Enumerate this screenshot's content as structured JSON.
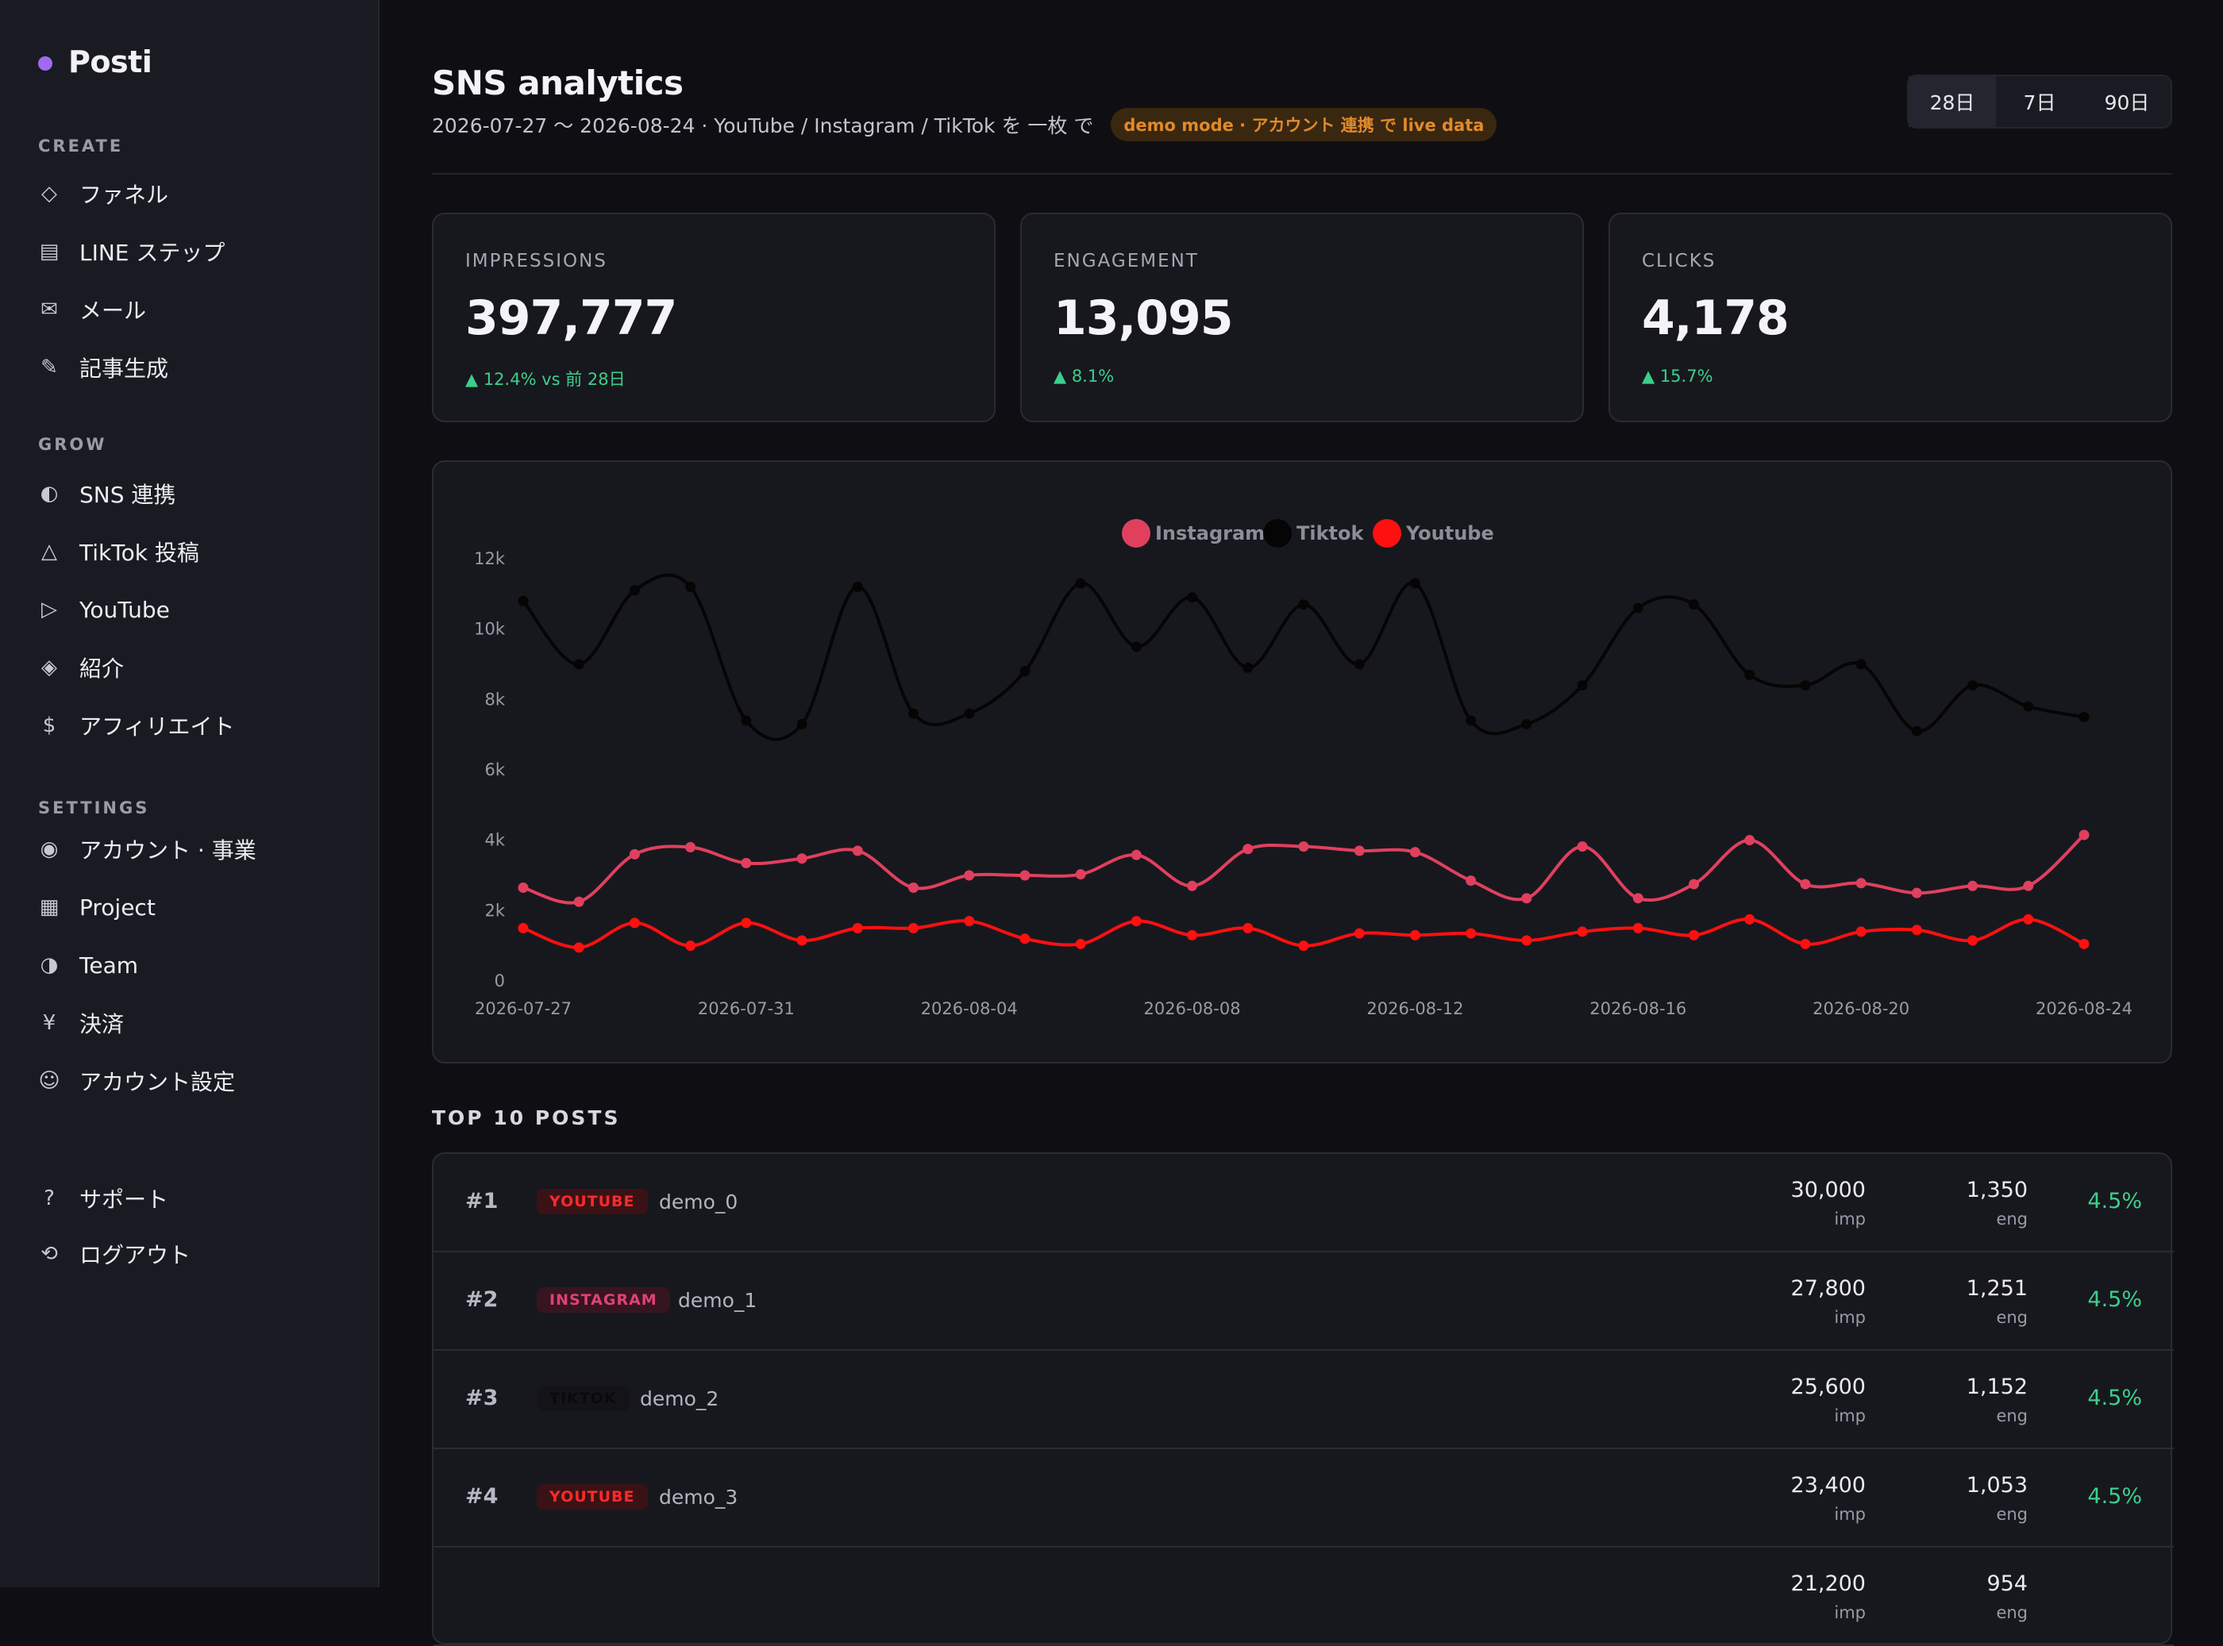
{
  "sidebar": {
    "brand": "Posti",
    "sections": [
      {
        "title": "CREATE",
        "items": [
          {
            "icon": "◇",
            "icon_name": "diamond-icon",
            "label": "ファネル"
          },
          {
            "icon": "▤",
            "icon_name": "list-icon",
            "label": "LINE ステップ"
          },
          {
            "icon": "✉",
            "icon_name": "mail-icon",
            "label": "メール"
          },
          {
            "icon": "✎",
            "icon_name": "pencil-icon",
            "label": "記事生成"
          }
        ]
      },
      {
        "title": "GROW",
        "items": [
          {
            "icon": "◐",
            "icon_name": "half-circle-icon",
            "label": "SNS 連携"
          },
          {
            "icon": "△",
            "icon_name": "triangle-icon",
            "label": "TikTok 投稿"
          },
          {
            "icon": "▷",
            "icon_name": "play-icon",
            "label": "YouTube"
          },
          {
            "icon": "◈",
            "icon_name": "diamond-dot-icon",
            "label": "紹介"
          },
          {
            "icon": "$",
            "icon_name": "dollar-icon",
            "label": "アフィリエイト"
          }
        ]
      },
      {
        "title": "SETTINGS",
        "items": [
          {
            "icon": "◉",
            "icon_name": "target-icon",
            "label": "アカウント · 事業"
          },
          {
            "icon": "▦",
            "icon_name": "grid-icon",
            "label": "Project"
          },
          {
            "icon": "◑",
            "icon_name": "half-circle-right-icon",
            "label": "Team"
          },
          {
            "icon": "¥",
            "icon_name": "yen-icon",
            "label": "決済"
          },
          {
            "icon": "☺",
            "icon_name": "user-face-icon",
            "label": "アカウント設定"
          }
        ]
      }
    ],
    "footer": [
      {
        "icon": "?",
        "icon_name": "help-icon",
        "label": "サポート"
      },
      {
        "icon": "⟲",
        "icon_name": "logout-icon",
        "label": "ログアウト"
      }
    ]
  },
  "header": {
    "title": "SNS analytics",
    "subtitle": "2026-07-27 〜 2026-08-24 · YouTube / Instagram / TikTok を 一枚 で",
    "badge": "demo mode · アカウント 連携 で live data",
    "ranges": [
      "28日",
      "7日",
      "90日"
    ],
    "active_range": "28日"
  },
  "kpis": [
    {
      "label": "IMPRESSIONS",
      "value": "397,777",
      "delta": "▲ 12.4% vs 前 28日"
    },
    {
      "label": "ENGAGEMENT",
      "value": "13,095",
      "delta": "▲ 8.1%"
    },
    {
      "label": "CLICKS",
      "value": "4,178",
      "delta": "▲ 15.7%"
    }
  ],
  "chart_data": {
    "type": "line",
    "x": [
      "2026-07-27",
      "2026-07-28",
      "2026-07-29",
      "2026-07-30",
      "2026-07-31",
      "2026-08-01",
      "2026-08-02",
      "2026-08-03",
      "2026-08-04",
      "2026-08-05",
      "2026-08-06",
      "2026-08-07",
      "2026-08-08",
      "2026-08-09",
      "2026-08-10",
      "2026-08-11",
      "2026-08-12",
      "2026-08-13",
      "2026-08-14",
      "2026-08-15",
      "2026-08-16",
      "2026-08-17",
      "2026-08-18",
      "2026-08-19",
      "2026-08-20",
      "2026-08-21",
      "2026-08-22",
      "2026-08-23",
      "2026-08-24"
    ],
    "xticks": [
      "2026-07-27",
      "2026-07-31",
      "2026-08-04",
      "2026-08-08",
      "2026-08-12",
      "2026-08-16",
      "2026-08-20",
      "2026-08-24"
    ],
    "yticks": [
      "0",
      "2k",
      "4k",
      "6k",
      "8k",
      "10k",
      "12k"
    ],
    "ylim": [
      0,
      12000
    ],
    "series": [
      {
        "name": "Instagram",
        "color": "#e0405e",
        "values": [
          2650,
          2250,
          3600,
          3800,
          3350,
          3480,
          3700,
          2650,
          3000,
          3000,
          3030,
          3580,
          2700,
          3750,
          3820,
          3700,
          3660,
          2850,
          2350,
          3820,
          2350,
          2750,
          4000,
          2750,
          2780,
          2500,
          2700,
          2700,
          4150
        ]
      },
      {
        "name": "Tiktok",
        "color": "#050505",
        "values": [
          10800,
          9000,
          11100,
          11200,
          7400,
          7300,
          11200,
          7600,
          7600,
          8800,
          11300,
          9500,
          10900,
          8900,
          10700,
          9000,
          11300,
          7400,
          7300,
          8400,
          10600,
          10700,
          8700,
          8400,
          9000,
          7100,
          8400,
          7800,
          7500
        ]
      },
      {
        "name": "Youtube",
        "color": "#ff1010",
        "values": [
          1500,
          950,
          1650,
          1000,
          1650,
          1150,
          1500,
          1500,
          1700,
          1200,
          1050,
          1700,
          1300,
          1500,
          1000,
          1350,
          1300,
          1350,
          1150,
          1400,
          1500,
          1300,
          1750,
          1050,
          1400,
          1450,
          1150,
          1750,
          1050
        ]
      }
    ],
    "legend": "top-center",
    "grid": false
  },
  "posts_section": {
    "title": "TOP 10 POSTS",
    "imp_unit": "imp",
    "eng_unit": "eng",
    "rows": [
      {
        "rank": "#1",
        "platform": "YOUTUBE",
        "name": "demo_0",
        "imp": "30,000",
        "eng": "1,350",
        "rate": "4.5%"
      },
      {
        "rank": "#2",
        "platform": "INSTAGRAM",
        "name": "demo_1",
        "imp": "27,800",
        "eng": "1,251",
        "rate": "4.5%"
      },
      {
        "rank": "#3",
        "platform": "TIKTOK",
        "name": "demo_2",
        "imp": "25,600",
        "eng": "1,152",
        "rate": "4.5%"
      },
      {
        "rank": "#4",
        "platform": "YOUTUBE",
        "name": "demo_3",
        "imp": "23,400",
        "eng": "1,053",
        "rate": "4.5%"
      },
      {
        "rank": "",
        "platform": "",
        "name": "",
        "imp": "21,200",
        "eng": "954",
        "rate": ""
      }
    ]
  },
  "platform_colors": {
    "YOUTUBE": {
      "fg": "#ff2a2a",
      "bg": "#3a1216"
    },
    "INSTAGRAM": {
      "fg": "#e0407a",
      "bg": "#361520"
    },
    "TIKTOK": {
      "fg": "#0a0a0a",
      "bg": "#141418"
    }
  }
}
